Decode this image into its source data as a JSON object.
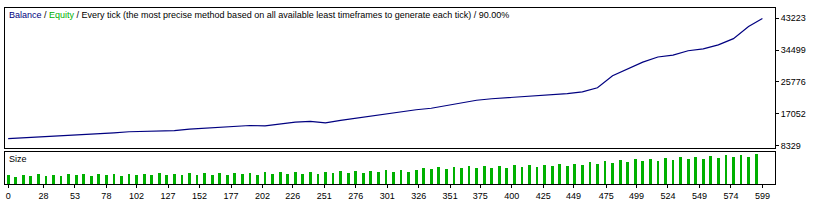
{
  "chart_data": [
    {
      "type": "line",
      "title": "Balance / Equity / Every tick (the most precise method based on all available least timeframes to generate each tick) / 90.00%",
      "x": [
        0,
        12,
        24,
        36,
        48,
        60,
        72,
        84,
        96,
        108,
        120,
        132,
        144,
        156,
        168,
        180,
        192,
        204,
        216,
        228,
        240,
        252,
        264,
        276,
        288,
        300,
        312,
        324,
        336,
        348,
        360,
        372,
        384,
        396,
        408,
        420,
        432,
        444,
        456,
        468,
        480,
        492,
        504,
        516,
        528,
        540,
        552,
        564,
        576,
        588,
        599
      ],
      "values": [
        10300,
        10500,
        10800,
        11000,
        11300,
        11500,
        11700,
        11900,
        12200,
        12300,
        12600,
        12500,
        12900,
        13200,
        13400,
        13700,
        13900,
        13800,
        14300,
        14800,
        15000,
        14600,
        15300,
        15900,
        16400,
        17000,
        17500,
        18200,
        18600,
        19300,
        20000,
        20800,
        21200,
        21500,
        21600,
        21900,
        22200,
        22600,
        23100,
        24200,
        27500,
        29300,
        31200,
        32600,
        33100,
        34300,
        34800,
        35900,
        37600,
        40900,
        43100
      ],
      "color": "#000080",
      "xlim": [
        -2.5,
        609
      ],
      "ylim": [
        7780,
        45970
      ],
      "yticks": [
        8329,
        17052,
        25776,
        34499,
        43223
      ],
      "tick_labels": "y",
      "grid": false
    },
    {
      "type": "bar",
      "title": "Size",
      "x": [
        0,
        6,
        12,
        18,
        24,
        30,
        36,
        42,
        48,
        54,
        60,
        66,
        72,
        78,
        84,
        90,
        96,
        102,
        108,
        114,
        120,
        126,
        132,
        138,
        144,
        150,
        156,
        162,
        168,
        174,
        180,
        186,
        192,
        198,
        204,
        210,
        216,
        222,
        228,
        234,
        240,
        246,
        252,
        258,
        264,
        270,
        276,
        282,
        288,
        294,
        300,
        306,
        312,
        318,
        324,
        330,
        336,
        342,
        348,
        354,
        360,
        366,
        372,
        378,
        384,
        390,
        396,
        402,
        408,
        414,
        420,
        426,
        432,
        438,
        444,
        450,
        456,
        462,
        468,
        474,
        480,
        486,
        492,
        498,
        504,
        510,
        516,
        522,
        528,
        534,
        540,
        546,
        552,
        558,
        564,
        570,
        576,
        582,
        588,
        594
      ],
      "values": [
        0.3,
        0.22,
        0.3,
        0.25,
        0.31,
        0.24,
        0.3,
        0.26,
        0.31,
        0.27,
        0.32,
        0.25,
        0.31,
        0.28,
        0.33,
        0.26,
        0.32,
        0.29,
        0.33,
        0.27,
        0.34,
        0.29,
        0.33,
        0.28,
        0.35,
        0.3,
        0.34,
        0.3,
        0.36,
        0.29,
        0.35,
        0.31,
        0.36,
        0.3,
        0.37,
        0.32,
        0.37,
        0.31,
        0.38,
        0.33,
        0.38,
        0.32,
        0.39,
        0.34,
        0.4,
        0.35,
        0.41,
        0.36,
        0.42,
        0.37,
        0.43,
        0.38,
        0.44,
        0.39,
        0.45,
        0.52,
        0.46,
        0.53,
        0.48,
        0.55,
        0.49,
        0.56,
        0.5,
        0.57,
        0.51,
        0.58,
        0.52,
        0.59,
        0.54,
        0.6,
        0.55,
        0.61,
        0.56,
        0.62,
        0.58,
        0.64,
        0.6,
        0.68,
        0.63,
        0.72,
        0.66,
        0.75,
        0.69,
        0.78,
        0.72,
        0.8,
        0.74,
        0.82,
        0.76,
        0.84,
        0.78,
        0.86,
        0.8,
        0.88,
        0.82,
        0.9,
        0.84,
        0.92,
        0.86,
        0.94
      ],
      "color": "#00b000",
      "xlim": [
        -2.5,
        609
      ],
      "ylim": [
        0,
        1
      ],
      "xticks": [
        0,
        28,
        53,
        78,
        102,
        127,
        152,
        177,
        202,
        226,
        251,
        276,
        301,
        326,
        351,
        375,
        400,
        425,
        449,
        475,
        499,
        524,
        549,
        574,
        599
      ],
      "tick_labels": "x",
      "grid": false
    }
  ]
}
